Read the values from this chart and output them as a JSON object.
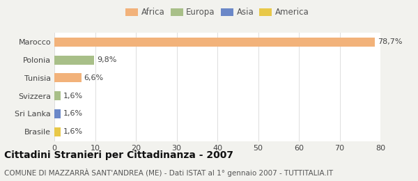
{
  "categories": [
    "Marocco",
    "Polonia",
    "Tunisia",
    "Svizzera",
    "Sri Lanka",
    "Brasile"
  ],
  "values": [
    78.7,
    9.8,
    6.6,
    1.6,
    1.6,
    1.6
  ],
  "labels": [
    "78,7%",
    "9,8%",
    "6,6%",
    "1,6%",
    "1,6%",
    "1,6%"
  ],
  "bar_colors": [
    "#f2b27a",
    "#a8bf88",
    "#f2b27a",
    "#a8bf88",
    "#6b88c8",
    "#e8c848"
  ],
  "legend_items": [
    {
      "label": "Africa",
      "color": "#f2b27a"
    },
    {
      "label": "Europa",
      "color": "#a8bf88"
    },
    {
      "label": "Asia",
      "color": "#6b88c8"
    },
    {
      "label": "America",
      "color": "#e8c848"
    }
  ],
  "title": "Cittadini Stranieri per Cittadinanza - 2007",
  "subtitle": "COMUNE DI MAZZARRÀ SANT'ANDREA (ME) - Dati ISTAT al 1° gennaio 2007 - TUTTITALIA.IT",
  "xlim": [
    0,
    80
  ],
  "xticks": [
    0,
    10,
    20,
    30,
    40,
    50,
    60,
    70,
    80
  ],
  "background_color": "#f2f2ee",
  "plot_background": "#ffffff",
  "grid_color": "#dddddd",
  "title_fontsize": 10,
  "subtitle_fontsize": 7.5,
  "label_fontsize": 8,
  "tick_fontsize": 8
}
